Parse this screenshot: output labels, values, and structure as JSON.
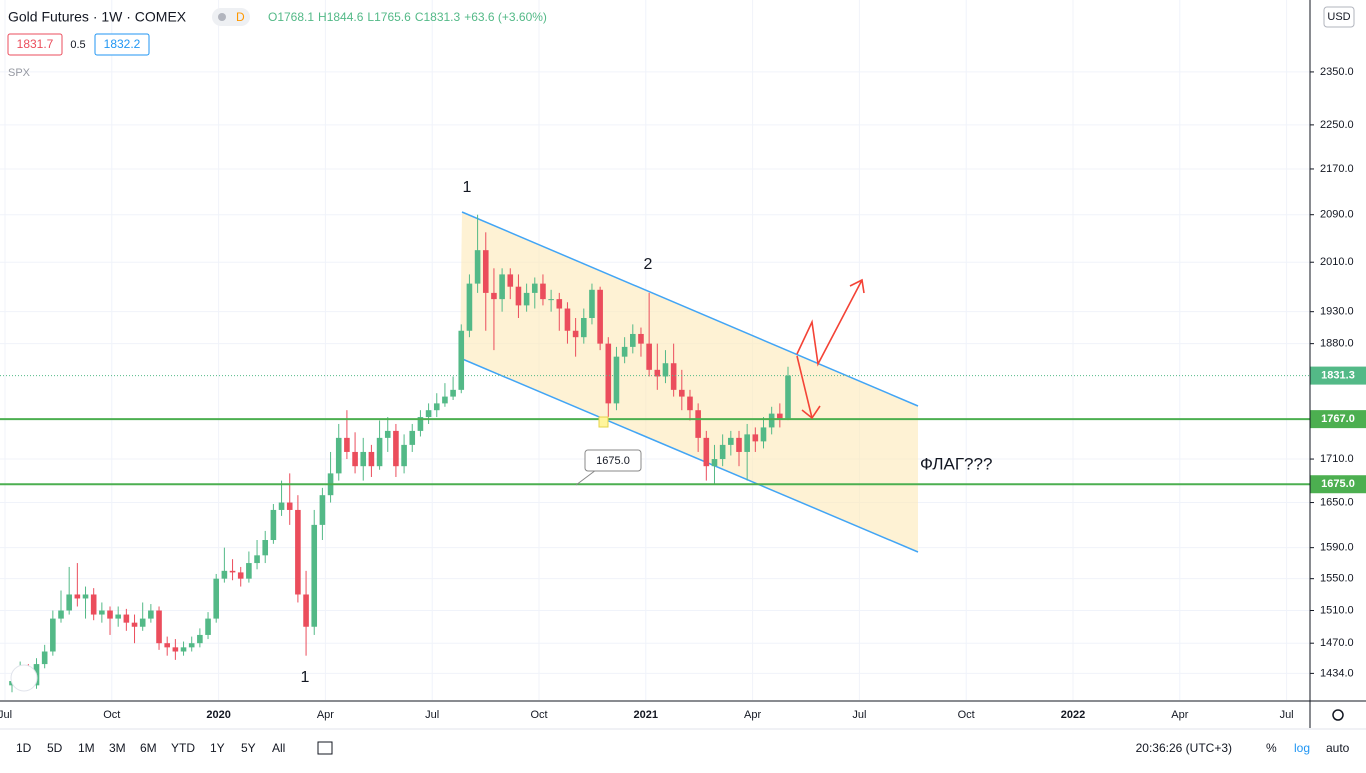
{
  "header": {
    "symbol": "Gold Futures · 1W · COMEX",
    "badge": "D",
    "ohlc": [
      "O1768.1",
      "H1844.6",
      "L1765.6",
      "C1831.3",
      "+63.6 (+3.60%)"
    ],
    "bid": "1831.7",
    "spread": "0.5",
    "ask": "1832.2",
    "compare": "SPX",
    "currency": "USD"
  },
  "chart_data": {
    "type": "candlestick",
    "log_scale": true,
    "grid": true,
    "up_color": "#53b987",
    "down_color": "#eb4d5c",
    "ylim": [
      1403,
      2493
    ],
    "yticks": [
      {
        "value": 2350,
        "label": "2350.0"
      },
      {
        "value": 2250,
        "label": "2250.0"
      },
      {
        "value": 2170,
        "label": "2170.0"
      },
      {
        "value": 2090,
        "label": "2090.0"
      },
      {
        "value": 2010,
        "label": "2010.0"
      },
      {
        "value": 1930,
        "label": "1930.0"
      },
      {
        "value": 1880,
        "label": "1880.0"
      },
      {
        "value": 1710,
        "label": "1710.0"
      },
      {
        "value": 1650,
        "label": "1650.0"
      },
      {
        "value": 1590,
        "label": "1590.0"
      },
      {
        "value": 1550,
        "label": "1550.0"
      },
      {
        "value": 1510,
        "label": "1510.0"
      },
      {
        "value": 1470,
        "label": "1470.0"
      },
      {
        "value": 1434,
        "label": "1434.0"
      }
    ],
    "xticks": [
      "Jul",
      "Oct",
      "2020",
      "Apr",
      "Jul",
      "Oct",
      "2021",
      "Apr",
      "Jul",
      "Oct",
      "2022",
      "Apr",
      "Jul"
    ],
    "last_price": {
      "value": 1831.3,
      "label": "1831.3"
    },
    "hlines": [
      {
        "value": 1767,
        "label": "1767.0",
        "color": "#4caf50"
      },
      {
        "value": 1675,
        "label": "1675.0",
        "color": "#4caf50"
      }
    ],
    "candles": {
      "open": [
        1420,
        1425,
        1440,
        1420,
        1445,
        1460,
        1500,
        1510,
        1530,
        1525,
        1530,
        1505,
        1510,
        1500,
        1505,
        1495,
        1490,
        1500,
        1510,
        1470,
        1465,
        1460,
        1465,
        1470,
        1480,
        1500,
        1550,
        1560,
        1558,
        1550,
        1570,
        1580,
        1600,
        1640,
        1650,
        1640,
        1530,
        1490,
        1620,
        1660,
        1690,
        1740,
        1720,
        1700,
        1720,
        1700,
        1740,
        1750,
        1700,
        1730,
        1750,
        1770,
        1780,
        1790,
        1800,
        1810,
        1900,
        1975,
        2030,
        1960,
        1950,
        1990,
        1970,
        1940,
        1960,
        1975,
        1950,
        1950,
        1935,
        1900,
        1890,
        1920,
        1965,
        1880,
        1790,
        1860,
        1875,
        1895,
        1880,
        1840,
        1830,
        1850,
        1810,
        1800,
        1780,
        1740,
        1700,
        1710,
        1730,
        1740,
        1720,
        1745,
        1735,
        1755,
        1775,
        1768.1
      ],
      "high": [
        1432,
        1448,
        1445,
        1452,
        1468,
        1510,
        1535,
        1565,
        1570,
        1540,
        1538,
        1520,
        1515,
        1515,
        1512,
        1505,
        1520,
        1518,
        1515,
        1478,
        1475,
        1472,
        1478,
        1488,
        1508,
        1556,
        1590,
        1575,
        1565,
        1585,
        1600,
        1612,
        1648,
        1680,
        1690,
        1660,
        1560,
        1640,
        1670,
        1720,
        1760,
        1780,
        1748,
        1740,
        1730,
        1765,
        1770,
        1760,
        1745,
        1760,
        1780,
        1790,
        1805,
        1820,
        1830,
        1910,
        1990,
        2090,
        2060,
        2000,
        2000,
        2000,
        1990,
        1975,
        1985,
        1990,
        1965,
        1960,
        1945,
        1920,
        1935,
        1975,
        1970,
        1890,
        1875,
        1890,
        1910,
        1905,
        1960,
        1880,
        1870,
        1880,
        1840,
        1810,
        1790,
        1750,
        1730,
        1745,
        1750,
        1750,
        1760,
        1755,
        1770,
        1785,
        1790,
        1844.6
      ],
      "low": [
        1412,
        1418,
        1415,
        1416,
        1440,
        1455,
        1495,
        1505,
        1515,
        1500,
        1498,
        1495,
        1480,
        1490,
        1485,
        1470,
        1485,
        1495,
        1462,
        1455,
        1450,
        1455,
        1460,
        1465,
        1475,
        1495,
        1545,
        1548,
        1540,
        1545,
        1562,
        1570,
        1595,
        1632,
        1620,
        1520,
        1455,
        1480,
        1600,
        1650,
        1680,
        1710,
        1690,
        1680,
        1685,
        1695,
        1720,
        1685,
        1690,
        1720,
        1742,
        1760,
        1770,
        1785,
        1795,
        1805,
        1890,
        1960,
        1900,
        1870,
        1930,
        1950,
        1920,
        1930,
        1935,
        1940,
        1930,
        1900,
        1880,
        1860,
        1880,
        1910,
        1870,
        1770,
        1780,
        1850,
        1865,
        1860,
        1830,
        1810,
        1820,
        1800,
        1780,
        1765,
        1720,
        1680,
        1675,
        1700,
        1715,
        1700,
        1680,
        1720,
        1725,
        1745,
        1755,
        1765.6
      ],
      "close": [
        1425,
        1440,
        1420,
        1445,
        1460,
        1500,
        1510,
        1530,
        1525,
        1530,
        1505,
        1510,
        1500,
        1505,
        1495,
        1490,
        1500,
        1510,
        1470,
        1465,
        1460,
        1465,
        1470,
        1480,
        1500,
        1550,
        1560,
        1558,
        1550,
        1570,
        1580,
        1600,
        1640,
        1650,
        1640,
        1530,
        1490,
        1620,
        1660,
        1690,
        1740,
        1720,
        1700,
        1720,
        1700,
        1740,
        1750,
        1700,
        1730,
        1750,
        1770,
        1780,
        1790,
        1800,
        1810,
        1900,
        1975,
        2030,
        1960,
        1950,
        1990,
        1970,
        1940,
        1960,
        1975,
        1950,
        1950,
        1935,
        1900,
        1890,
        1920,
        1965,
        1880,
        1790,
        1860,
        1875,
        1895,
        1880,
        1840,
        1830,
        1850,
        1810,
        1800,
        1780,
        1740,
        1700,
        1710,
        1730,
        1740,
        1720,
        1745,
        1735,
        1755,
        1775,
        1768,
        1831.3
      ]
    },
    "annotations": [
      "1",
      "2",
      "1",
      "ФЛАГ???",
      "1675.0"
    ]
  },
  "toolbar": {
    "ranges": [
      "1D",
      "5D",
      "1M",
      "3M",
      "6M",
      "YTD",
      "1Y",
      "5Y",
      "All"
    ],
    "clock": "20:36:26 (UTC+3)",
    "percent": "%",
    "log": "log",
    "auto": "auto"
  }
}
